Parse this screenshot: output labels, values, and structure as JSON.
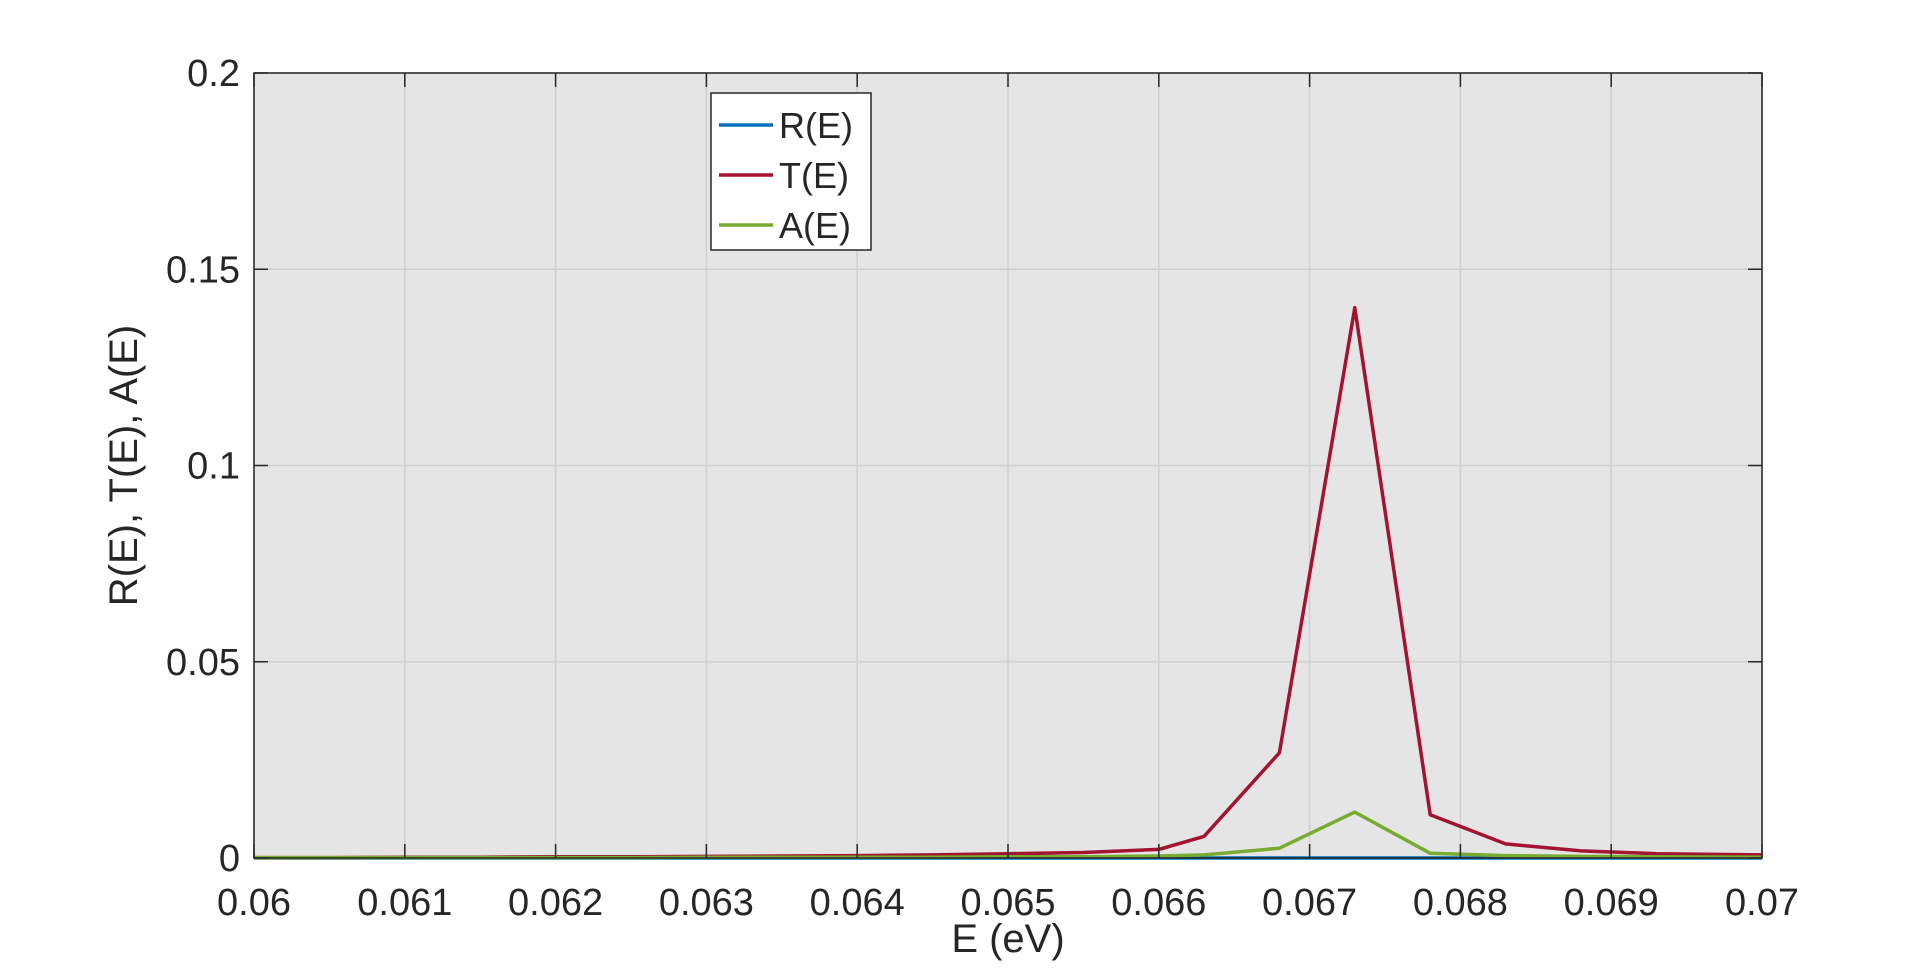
{
  "chart_data": {
    "type": "line",
    "xlabel": "E (eV)",
    "ylabel": "R(E), T(E), A(E)",
    "xlim": [
      0.06,
      0.07
    ],
    "ylim": [
      0,
      0.2
    ],
    "xticks": [
      0.06,
      0.061,
      0.062,
      0.063,
      0.064,
      0.065,
      0.066,
      0.067,
      0.068,
      0.069,
      0.07
    ],
    "xtick_labels": [
      "0.06",
      "0.061",
      "0.062",
      "0.063",
      "0.064",
      "0.065",
      "0.066",
      "0.067",
      "0.068",
      "0.069",
      "0.07"
    ],
    "yticks": [
      0,
      0.05,
      0.1,
      0.15,
      0.2
    ],
    "ytick_labels": [
      "0",
      "0.05",
      "0.1",
      "0.15",
      "0.2"
    ],
    "grid": true,
    "legend_position": "top-left",
    "background_color": "#e5e5e5",
    "x": [
      0.06,
      0.0605,
      0.061,
      0.0615,
      0.062,
      0.0625,
      0.063,
      0.0635,
      0.064,
      0.0645,
      0.065,
      0.0655,
      0.066,
      0.0663,
      0.0668,
      0.0673,
      0.0678,
      0.0683,
      0.0688,
      0.0693,
      0.07
    ],
    "series": [
      {
        "name": "R(E)",
        "color": "#0072bd",
        "values": [
          0,
          0,
          0,
          0,
          0,
          0,
          0,
          0,
          0,
          0,
          0,
          0,
          0,
          0,
          0,
          0,
          0,
          0,
          0,
          0,
          0
        ]
      },
      {
        "name": "T(E)",
        "color": "#a2142f",
        "values": [
          0.0001,
          0.0001,
          0.0002,
          0.0002,
          0.0003,
          0.0003,
          0.0004,
          0.0005,
          0.0006,
          0.0008,
          0.0011,
          0.0014,
          0.0022,
          0.0055,
          0.0268,
          0.1402,
          0.011,
          0.0036,
          0.0018,
          0.0011,
          0.0008
        ]
      },
      {
        "name": "A(E)",
        "color": "#77ac30",
        "values": [
          0.0001,
          0.0001,
          0.0001,
          0.0001,
          0.0001,
          0.0001,
          0.0002,
          0.0002,
          0.0002,
          0.0002,
          0.0003,
          0.0003,
          0.0005,
          0.0008,
          0.0025,
          0.0117,
          0.0012,
          0.0006,
          0.0004,
          0.0003,
          0.0002
        ]
      }
    ]
  }
}
